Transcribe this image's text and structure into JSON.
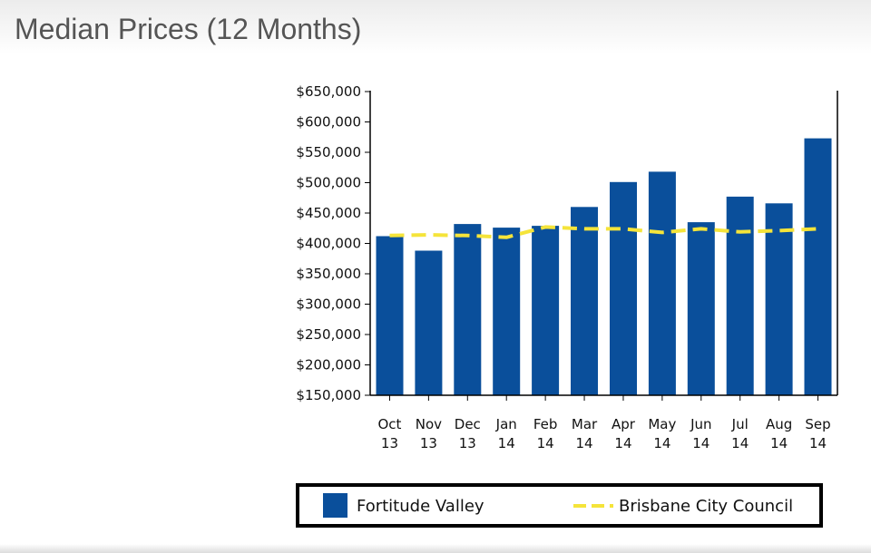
{
  "page": {
    "title": "Median Prices (12 Months)"
  },
  "chart_data": {
    "type": "bar",
    "categories": [
      [
        "Oct",
        "13"
      ],
      [
        "Nov",
        "13"
      ],
      [
        "Dec",
        "13"
      ],
      [
        "Jan",
        "14"
      ],
      [
        "Feb",
        "14"
      ],
      [
        "Mar",
        "14"
      ],
      [
        "Apr",
        "14"
      ],
      [
        "May",
        "14"
      ],
      [
        "Jun",
        "14"
      ],
      [
        "Jul",
        "14"
      ],
      [
        "Aug",
        "14"
      ],
      [
        "Sep",
        "14"
      ]
    ],
    "series": [
      {
        "name": "Fortitude Valley",
        "type": "bar",
        "color": "#0a4f9b",
        "values": [
          412000,
          388000,
          432000,
          426000,
          429000,
          460000,
          501000,
          518000,
          435000,
          477000,
          466000,
          573000
        ]
      },
      {
        "name": "Brisbane City Council",
        "type": "line",
        "style": "dashed",
        "color": "#f5e43a",
        "values": [
          413000,
          414000,
          413000,
          410000,
          427000,
          424000,
          424000,
          418000,
          424000,
          419000,
          421000,
          424000
        ]
      }
    ],
    "ylim": [
      150000,
      650000
    ],
    "yticks": [
      "$650,000",
      "$600,000",
      "$550,000",
      "$500,000",
      "$450,000",
      "$400,000",
      "$350,000",
      "$300,000",
      "$250,000",
      "$200,000",
      "$150,000"
    ],
    "ytick_values": [
      650000,
      600000,
      550000,
      500000,
      450000,
      400000,
      350000,
      300000,
      250000,
      200000,
      150000
    ],
    "legend_position": "bottom",
    "xlabel": "",
    "ylabel": "",
    "grid": false
  }
}
